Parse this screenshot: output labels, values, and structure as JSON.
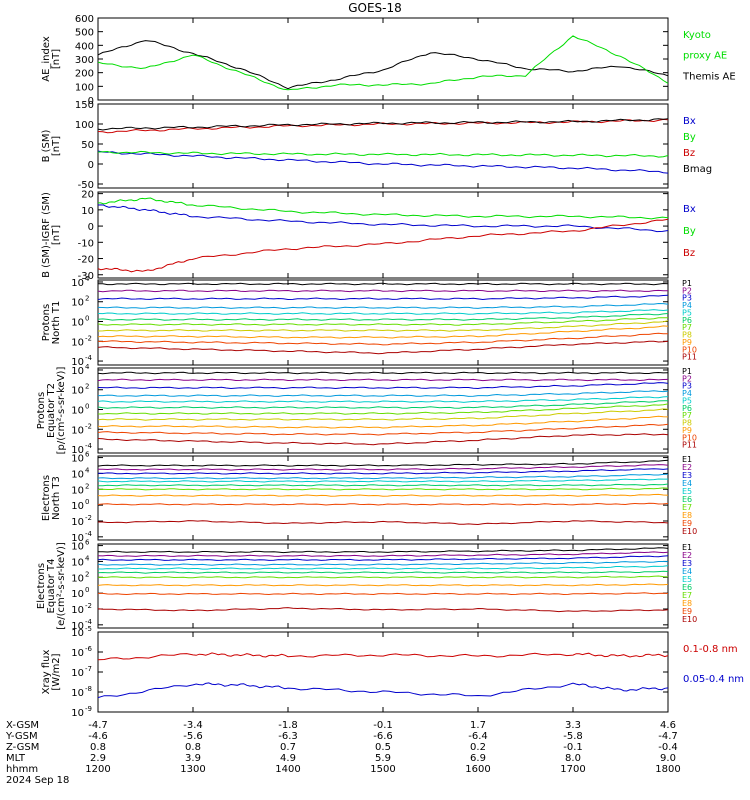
{
  "title": "GOES-18",
  "x_axis": {
    "ticks": [
      "1200",
      "1300",
      "1400",
      "1500",
      "1600",
      "1700",
      "1800"
    ],
    "rows": [
      {
        "label": "X-GSM",
        "values": [
          "-4.7",
          "-3.4",
          "-1.8",
          "-0.1",
          "1.7",
          "3.3",
          "4.6"
        ]
      },
      {
        "label": "Y-GSM",
        "values": [
          "-4.6",
          "-5.6",
          "-6.3",
          "-6.6",
          "-6.4",
          "-5.8",
          "-4.7"
        ]
      },
      {
        "label": "Z-GSM",
        "values": [
          "0.8",
          "0.8",
          "0.7",
          "0.5",
          "0.2",
          "-0.1",
          "-0.4"
        ]
      },
      {
        "label": "MLT",
        "values": [
          "2.9",
          "3.9",
          "4.9",
          "5.9",
          "6.9",
          "8.0",
          "9.0"
        ]
      },
      {
        "label": "hhmm",
        "values": [
          "1200",
          "1300",
          "1400",
          "1500",
          "1600",
          "1700",
          "1800"
        ]
      }
    ],
    "date": "2024 Sep 18"
  },
  "chart_data": [
    {
      "type": "line",
      "ylabel": [
        "AE_index",
        "[nT]"
      ],
      "yticks": [
        "0",
        "100",
        "200",
        "300",
        "400",
        "500",
        "600"
      ],
      "ylim": [
        0,
        600
      ],
      "x": [
        1200,
        1230,
        1300,
        1330,
        1400,
        1430,
        1500,
        1530,
        1600,
        1630,
        1700,
        1730,
        1800
      ],
      "series": [
        {
          "name": "Themis AE",
          "color": "#000000",
          "values": [
            330,
            440,
            340,
            230,
            90,
            150,
            220,
            350,
            300,
            230,
            210,
            250,
            180
          ]
        },
        {
          "name": "Kyoto proxy AE",
          "color": "#00dd00",
          "values": [
            270,
            230,
            330,
            200,
            70,
            110,
            110,
            120,
            170,
            180,
            470,
            320,
            130
          ]
        }
      ],
      "legend": [
        {
          "text": "Kyoto",
          "color": "#00dd00"
        },
        {
          "text": "proxy AE",
          "color": "#00dd00"
        },
        {
          "text": "Themis AE",
          "color": "#000000"
        }
      ]
    },
    {
      "type": "line",
      "ylabel": [
        "B (SM)",
        "[nT]"
      ],
      "yticks": [
        "-50",
        "0",
        "50",
        "100",
        "150"
      ],
      "ylim": [
        -60,
        150
      ],
      "x": [
        1200,
        1300,
        1400,
        1500,
        1600,
        1700,
        1800
      ],
      "series": [
        {
          "name": "Bx",
          "color": "#0000cc",
          "values": [
            30,
            20,
            10,
            0,
            -5,
            -10,
            -20
          ]
        },
        {
          "name": "By",
          "color": "#00dd00",
          "values": [
            30,
            27,
            25,
            24,
            23,
            22,
            20
          ]
        },
        {
          "name": "Bz",
          "color": "#cc0000",
          "values": [
            80,
            88,
            95,
            100,
            102,
            105,
            110
          ]
        },
        {
          "name": "Bmag",
          "color": "#000000",
          "values": [
            88,
            92,
            98,
            102,
            104,
            106,
            112
          ]
        }
      ],
      "legend": [
        {
          "text": "Bx",
          "color": "#0000cc"
        },
        {
          "text": "By",
          "color": "#00dd00"
        },
        {
          "text": "Bz",
          "color": "#cc0000"
        },
        {
          "text": "Bmag",
          "color": "#000000"
        }
      ]
    },
    {
      "type": "line",
      "ylabel": [
        "B (SM)-IGRF (SM)",
        "[nT]"
      ],
      "yticks": [
        "-30",
        "-20",
        "-10",
        "0",
        "10",
        "20"
      ],
      "ylim": [
        -32,
        21
      ],
      "x": [
        1200,
        1230,
        1300,
        1400,
        1500,
        1600,
        1700,
        1800
      ],
      "series": [
        {
          "name": "Bx",
          "color": "#0000cc",
          "values": [
            13,
            10,
            6,
            3,
            1,
            0,
            0,
            -3
          ]
        },
        {
          "name": "By",
          "color": "#00dd00",
          "values": [
            14,
            17,
            13,
            9,
            7,
            6,
            6,
            5
          ]
        },
        {
          "name": "Bz",
          "color": "#cc0000",
          "values": [
            -26,
            -28,
            -20,
            -14,
            -11,
            -6,
            -3,
            4
          ]
        }
      ],
      "legend": [
        {
          "text": "Bx",
          "color": "#0000cc"
        },
        {
          "text": "By",
          "color": "#00dd00"
        },
        {
          "text": "Bz",
          "color": "#cc0000"
        }
      ]
    },
    {
      "type": "line",
      "log": true,
      "ylabel": [
        "Protons",
        "North T1"
      ],
      "yticks": [
        {
          "base": "10",
          "exp": "4"
        },
        {
          "base": "10",
          "exp": "2"
        },
        {
          "base": "10",
          "exp": "0"
        },
        {
          "base": "10",
          "exp": "-2"
        },
        {
          "base": "10",
          "exp": "-4"
        }
      ],
      "ylim_exp": [
        -4.4,
        4.2
      ],
      "x": [
        1200,
        1300,
        1400,
        1500,
        1600,
        1700,
        1800
      ],
      "series": [
        {
          "name": "P1",
          "color": "#000000",
          "exp": [
            3.8,
            3.8,
            3.8,
            3.8,
            3.8,
            3.8,
            3.8
          ]
        },
        {
          "name": "P2",
          "color": "#880088",
          "exp": [
            3.1,
            3.1,
            3.1,
            3.1,
            3.1,
            3.1,
            3.1
          ]
        },
        {
          "name": "P3",
          "color": "#0000cc",
          "exp": [
            2.3,
            2.3,
            2.3,
            2.3,
            2.3,
            2.4,
            2.6
          ]
        },
        {
          "name": "P4",
          "color": "#0099dd",
          "exp": [
            1.4,
            1.4,
            1.4,
            1.4,
            1.4,
            1.5,
            1.8
          ]
        },
        {
          "name": "P5",
          "color": "#00cccc",
          "exp": [
            0.8,
            0.8,
            0.8,
            0.8,
            0.8,
            0.9,
            1.2
          ]
        },
        {
          "name": "P6",
          "color": "#00cc66",
          "exp": [
            0.2,
            0.2,
            0.2,
            0.2,
            0.2,
            0.4,
            0.8
          ]
        },
        {
          "name": "P7",
          "color": "#66dd00",
          "exp": [
            -0.3,
            -0.3,
            -0.3,
            -0.3,
            -0.3,
            0.0,
            0.4
          ]
        },
        {
          "name": "P8",
          "color": "#cccc00",
          "exp": [
            -0.9,
            -0.9,
            -0.9,
            -0.9,
            -0.9,
            -0.5,
            0.0
          ]
        },
        {
          "name": "P9",
          "color": "#ff9900",
          "exp": [
            -1.5,
            -1.5,
            -1.6,
            -1.6,
            -1.5,
            -1.0,
            -0.5
          ]
        },
        {
          "name": "P10",
          "color": "#ee4400",
          "exp": [
            -2.0,
            -2.1,
            -2.2,
            -2.3,
            -2.1,
            -1.7,
            -1.2
          ]
        },
        {
          "name": "P11",
          "color": "#aa0000",
          "exp": [
            -2.6,
            -2.8,
            -3.0,
            -3.2,
            -2.8,
            -2.3,
            -2.0
          ]
        }
      ]
    },
    {
      "type": "line",
      "log": true,
      "ylabel": [
        "Protons",
        "Equator T2",
        "[p/(cm²-s-sr-keV)]"
      ],
      "yticks": [
        {
          "base": "10",
          "exp": "4"
        },
        {
          "base": "10",
          "exp": "2"
        },
        {
          "base": "10",
          "exp": "0"
        },
        {
          "base": "10",
          "exp": "-2"
        },
        {
          "base": "10",
          "exp": "-4"
        }
      ],
      "ylim_exp": [
        -4.4,
        4.2
      ],
      "x": [
        1200,
        1300,
        1400,
        1500,
        1600,
        1700,
        1800
      ],
      "series": [
        {
          "name": "P1",
          "color": "#000000",
          "exp": [
            3.7,
            3.7,
            3.7,
            3.7,
            3.7,
            3.7,
            3.7
          ]
        },
        {
          "name": "P2",
          "color": "#880088",
          "exp": [
            3.0,
            3.0,
            3.0,
            3.0,
            3.0,
            3.0,
            3.0
          ]
        },
        {
          "name": "P3",
          "color": "#0000cc",
          "exp": [
            2.2,
            2.2,
            2.2,
            2.2,
            2.2,
            2.4,
            2.7
          ]
        },
        {
          "name": "P4",
          "color": "#0099dd",
          "exp": [
            1.4,
            1.4,
            1.4,
            1.4,
            1.4,
            1.6,
            1.9
          ]
        },
        {
          "name": "P5",
          "color": "#00cccc",
          "exp": [
            0.8,
            0.8,
            0.8,
            0.8,
            0.8,
            1.0,
            1.3
          ]
        },
        {
          "name": "P6",
          "color": "#00cc66",
          "exp": [
            0.2,
            0.2,
            0.2,
            0.2,
            0.2,
            0.5,
            0.9
          ]
        },
        {
          "name": "P7",
          "color": "#66dd00",
          "exp": [
            -0.4,
            -0.4,
            -0.4,
            -0.4,
            -0.3,
            0.1,
            0.5
          ]
        },
        {
          "name": "P8",
          "color": "#cccc00",
          "exp": [
            -1.0,
            -1.0,
            -1.0,
            -1.0,
            -0.9,
            -0.4,
            0.0
          ]
        },
        {
          "name": "P9",
          "color": "#ff9900",
          "exp": [
            -1.7,
            -1.7,
            -1.8,
            -1.8,
            -1.6,
            -1.2,
            -0.7
          ]
        },
        {
          "name": "P10",
          "color": "#ee4400",
          "exp": [
            -2.3,
            -2.4,
            -2.5,
            -2.5,
            -2.3,
            -1.9,
            -1.5
          ]
        },
        {
          "name": "P11",
          "color": "#aa0000",
          "exp": [
            -3.0,
            -3.2,
            -3.4,
            -3.5,
            -3.1,
            -2.6,
            -2.5
          ]
        }
      ]
    },
    {
      "type": "line",
      "log": true,
      "ylabel": [
        "Electrons",
        "North T3"
      ],
      "yticks": [
        {
          "base": "10",
          "exp": "6"
        },
        {
          "base": "10",
          "exp": "4"
        },
        {
          "base": "10",
          "exp": "2"
        },
        {
          "base": "10",
          "exp": "0"
        },
        {
          "base": "10",
          "exp": "-2"
        },
        {
          "base": "10",
          "exp": "-4"
        }
      ],
      "ylim_exp": [
        -4.4,
        6.2
      ],
      "x": [
        1200,
        1300,
        1400,
        1500,
        1600,
        1700,
        1800
      ],
      "series": [
        {
          "name": "E1",
          "color": "#000000",
          "exp": [
            5.0,
            5.0,
            5.0,
            5.0,
            5.1,
            5.2,
            5.6
          ]
        },
        {
          "name": "E2",
          "color": "#880088",
          "exp": [
            4.5,
            4.5,
            4.5,
            4.5,
            4.6,
            4.8,
            5.1
          ]
        },
        {
          "name": "E3",
          "color": "#0000cc",
          "exp": [
            4.0,
            4.0,
            4.0,
            4.0,
            4.1,
            4.3,
            4.6
          ]
        },
        {
          "name": "E4",
          "color": "#0099dd",
          "exp": [
            3.4,
            3.4,
            3.4,
            3.4,
            3.5,
            3.6,
            3.9
          ]
        },
        {
          "name": "E5",
          "color": "#00cccc",
          "exp": [
            3.0,
            3.0,
            3.0,
            3.0,
            3.0,
            3.1,
            3.3
          ]
        },
        {
          "name": "E6",
          "color": "#00cc66",
          "exp": [
            2.5,
            2.5,
            2.5,
            2.5,
            2.5,
            2.5,
            2.6
          ]
        },
        {
          "name": "E7",
          "color": "#66dd00",
          "exp": [
            2.0,
            2.0,
            2.0,
            2.0,
            2.0,
            2.0,
            2.1
          ]
        },
        {
          "name": "E8",
          "color": "#ff9900",
          "exp": [
            1.2,
            1.2,
            1.2,
            1.2,
            1.2,
            1.2,
            1.3
          ]
        },
        {
          "name": "E9",
          "color": "#ee4400",
          "exp": [
            0.1,
            0.1,
            0.1,
            0.1,
            0.1,
            0.1,
            0.2
          ]
        },
        {
          "name": "E10",
          "color": "#aa0000",
          "exp": [
            -2.2,
            -2.0,
            -2.3,
            -2.1,
            -2.4,
            -2.0,
            -2.2
          ]
        }
      ]
    },
    {
      "type": "line",
      "log": true,
      "ylabel": [
        "Electrons",
        "Equator T4",
        "[e/(cm²-s-sr-keV)]"
      ],
      "yticks": [
        {
          "base": "10",
          "exp": "6"
        },
        {
          "base": "10",
          "exp": "4"
        },
        {
          "base": "10",
          "exp": "2"
        },
        {
          "base": "10",
          "exp": "0"
        },
        {
          "base": "10",
          "exp": "-2"
        },
        {
          "base": "10",
          "exp": "-4"
        }
      ],
      "ylim_exp": [
        -4.4,
        6.2
      ],
      "x": [
        1200,
        1300,
        1400,
        1500,
        1600,
        1700,
        1800
      ],
      "series": [
        {
          "name": "E1",
          "color": "#000000",
          "exp": [
            5.2,
            5.2,
            5.2,
            5.2,
            5.3,
            5.4,
            5.7
          ]
        },
        {
          "name": "E2",
          "color": "#880088",
          "exp": [
            4.7,
            4.7,
            4.7,
            4.7,
            4.8,
            4.9,
            5.2
          ]
        },
        {
          "name": "E3",
          "color": "#0000cc",
          "exp": [
            4.2,
            4.2,
            4.2,
            4.2,
            4.3,
            4.4,
            4.7
          ]
        },
        {
          "name": "E4",
          "color": "#0099dd",
          "exp": [
            3.6,
            3.6,
            3.6,
            3.6,
            3.7,
            3.8,
            4.0
          ]
        },
        {
          "name": "E5",
          "color": "#00cccc",
          "exp": [
            3.1,
            3.1,
            3.1,
            3.1,
            3.1,
            3.2,
            3.4
          ]
        },
        {
          "name": "E6",
          "color": "#00cc66",
          "exp": [
            2.6,
            2.6,
            2.6,
            2.6,
            2.6,
            2.6,
            2.7
          ]
        },
        {
          "name": "E7",
          "color": "#66dd00",
          "exp": [
            2.0,
            2.0,
            2.0,
            2.0,
            2.0,
            2.0,
            2.1
          ]
        },
        {
          "name": "E8",
          "color": "#ff9900",
          "exp": [
            1.0,
            1.0,
            1.0,
            1.0,
            1.0,
            1.0,
            1.1
          ]
        },
        {
          "name": "E9",
          "color": "#ee4400",
          "exp": [
            -0.1,
            -0.1,
            -0.1,
            -0.1,
            -0.1,
            -0.1,
            0.0
          ]
        },
        {
          "name": "E10",
          "color": "#aa0000",
          "exp": [
            -2.0,
            -2.2,
            -1.9,
            -2.1,
            -2.0,
            -2.3,
            -2.1
          ]
        }
      ]
    },
    {
      "type": "line",
      "log": true,
      "ylabel": [
        "Xray flux",
        "[W/m2]"
      ],
      "yticks": [
        {
          "base": "10",
          "exp": "-5"
        },
        {
          "base": "10",
          "exp": "-6"
        },
        {
          "base": "10",
          "exp": "-7"
        },
        {
          "base": "10",
          "exp": "-8"
        },
        {
          "base": "10",
          "exp": "-9"
        }
      ],
      "ylim_exp": [
        -9,
        -5
      ],
      "x": [
        1200,
        1300,
        1330,
        1400,
        1500,
        1600,
        1700,
        1730,
        1800
      ],
      "series": [
        {
          "name": "0.1-0.8 nm",
          "color": "#cc0000",
          "exp": [
            -6.4,
            -6.1,
            -6.15,
            -6.2,
            -6.15,
            -6.2,
            -6.1,
            -6.2,
            -6.15
          ]
        },
        {
          "name": "0.05-0.4 nm",
          "color": "#0000cc",
          "exp": [
            -8.3,
            -7.6,
            -7.65,
            -7.8,
            -8.0,
            -8.2,
            -7.6,
            -7.9,
            -7.8
          ]
        }
      ],
      "legend": [
        {
          "text": "0.1-0.8 nm",
          "color": "#cc0000"
        },
        {
          "text": "0.05-0.4 nm",
          "color": "#0000cc"
        }
      ]
    }
  ]
}
